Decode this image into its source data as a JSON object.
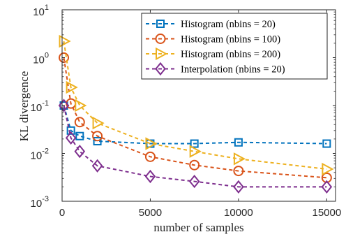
{
  "chart_data": {
    "type": "line",
    "title": "",
    "xlabel": "number of samples",
    "ylabel": "KL divergence",
    "xscale": "linear",
    "yscale": "log",
    "xlim": [
      0,
      15500
    ],
    "ylim": [
      0.001,
      10
    ],
    "x_ticks": [
      {
        "value": 0,
        "label": "0"
      },
      {
        "value": 5000,
        "label": "5000"
      },
      {
        "value": 10000,
        "label": "10000"
      },
      {
        "value": 15000,
        "label": "15000"
      }
    ],
    "y_ticks": [
      {
        "value": 0.001,
        "base": "10",
        "exp": "-3"
      },
      {
        "value": 0.01,
        "base": "10",
        "exp": "-2"
      },
      {
        "value": 0.1,
        "base": "10",
        "exp": "-1"
      },
      {
        "value": 1,
        "base": "10",
        "exp": "0"
      },
      {
        "value": 10,
        "base": "10",
        "exp": "1"
      }
    ],
    "grid": false,
    "legend_position": "top-right",
    "series": [
      {
        "name": "Histogram (nbins = 20)",
        "color": "#0072BD",
        "marker": "square",
        "x": [
          100,
          500,
          1000,
          2000,
          5000,
          7500,
          10000,
          15000
        ],
        "y": [
          0.1,
          0.03,
          0.023,
          0.018,
          0.016,
          0.016,
          0.017,
          0.016
        ]
      },
      {
        "name": "Histogram (nbins = 100)",
        "color": "#D95319",
        "marker": "circle",
        "x": [
          100,
          500,
          1000,
          2000,
          5000,
          7500,
          10000,
          15000
        ],
        "y": [
          1.0,
          0.11,
          0.045,
          0.023,
          0.0085,
          0.0057,
          0.0043,
          0.0031
        ]
      },
      {
        "name": "Histogram (nbins = 200)",
        "color": "#EDB120",
        "marker": "triangle-right",
        "x": [
          100,
          500,
          1000,
          2000,
          5000,
          7500,
          10000,
          15000
        ],
        "y": [
          2.2,
          0.24,
          0.1,
          0.043,
          0.016,
          0.011,
          0.0077,
          0.0047
        ]
      },
      {
        "name": "Interpolation (nbins = 20)",
        "color": "#7E2F8E",
        "marker": "diamond",
        "x": [
          100,
          500,
          1000,
          2000,
          5000,
          7500,
          10000,
          15000
        ],
        "y": [
          0.1,
          0.021,
          0.011,
          0.0055,
          0.0033,
          0.0026,
          0.002,
          0.002
        ]
      }
    ]
  }
}
